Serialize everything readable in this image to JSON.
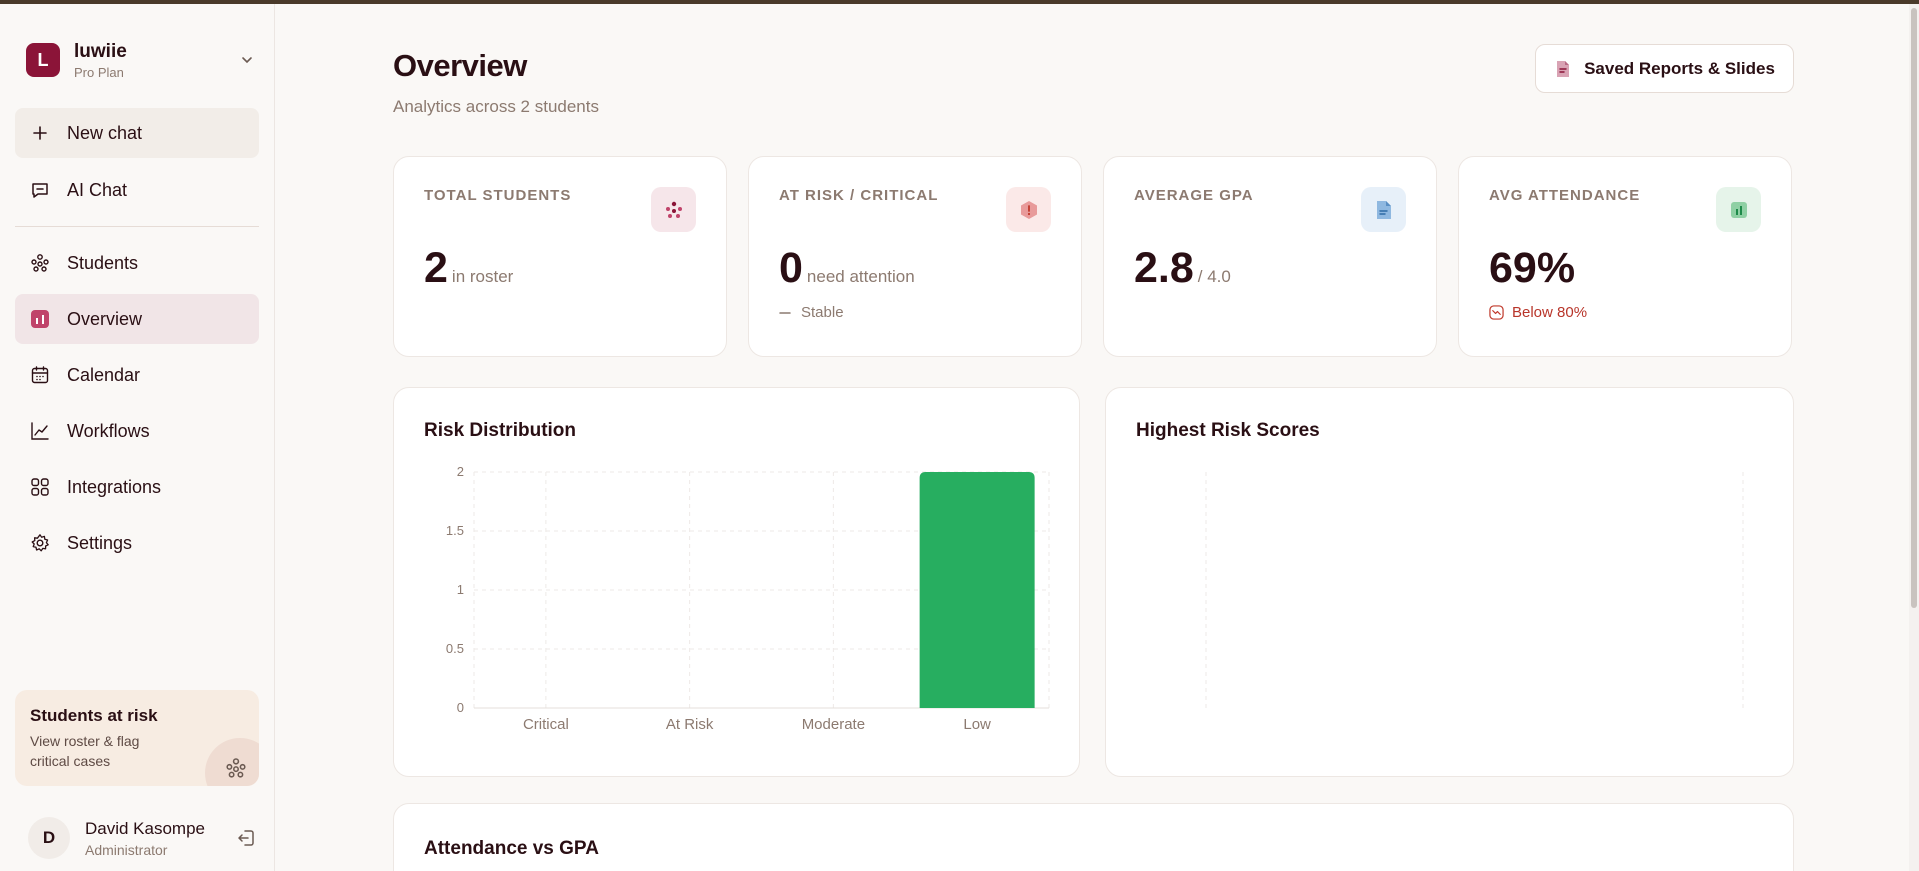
{
  "workspace": {
    "initial": "L",
    "name": "luwiie",
    "plan": "Pro Plan"
  },
  "nav": {
    "new_chat": "New chat",
    "ai_chat": "AI Chat",
    "students": "Students",
    "overview": "Overview",
    "calendar": "Calendar",
    "workflows": "Workflows",
    "integrations": "Integrations",
    "settings": "Settings"
  },
  "risk_card": {
    "title": "Students at risk",
    "subtitle": "View roster & flag critical cases"
  },
  "user": {
    "initial": "D",
    "name": "David Kasompe",
    "role": "Administrator"
  },
  "header": {
    "title": "Overview",
    "subtitle": "Analytics across 2 students",
    "saved_button": "Saved Reports & Slides"
  },
  "stats": {
    "total": {
      "label": "TOTAL STUDENTS",
      "value": "2",
      "unit": "in roster"
    },
    "risk": {
      "label": "AT RISK / CRITICAL",
      "value": "0",
      "unit": "need attention",
      "foot": "Stable"
    },
    "gpa": {
      "label": "AVERAGE GPA",
      "value": "2.8",
      "unit": "/ 4.0"
    },
    "attendance": {
      "label": "AVG ATTENDANCE",
      "value": "69%",
      "foot": "Below 80%"
    }
  },
  "panels": {
    "risk_distribution": "Risk Distribution",
    "highest_risk": "Highest Risk Scores",
    "attendance_gpa": "Attendance vs GPA"
  },
  "colors": {
    "accent": "#8b1438",
    "bar": "#27ae60",
    "warn": "#c0392b"
  },
  "chart_data": {
    "type": "bar",
    "title": "Risk Distribution",
    "categories": [
      "Critical",
      "At Risk",
      "Moderate",
      "Low"
    ],
    "values": [
      0,
      0,
      0,
      2
    ],
    "ylim": [
      0,
      2
    ],
    "yticks": [
      "0",
      "0.5",
      "1",
      "1.5",
      "2"
    ],
    "grid": true
  }
}
